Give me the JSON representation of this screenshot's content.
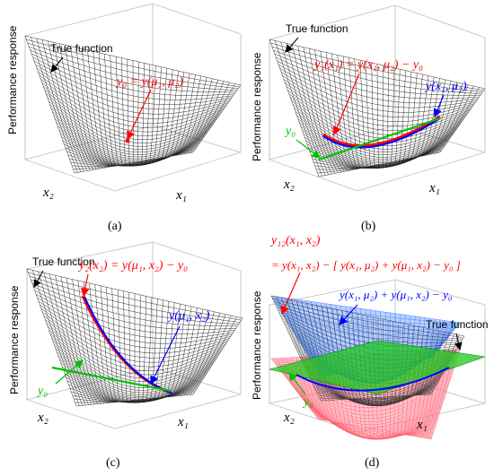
{
  "panels": [
    {
      "caption": "(a)",
      "ylabel": "Performance response",
      "xlabel1": "x₁",
      "xlabel2": "x₂",
      "true_function_label": "True function",
      "annotation": "y₀ = y(μ₁, μ₂)"
    },
    {
      "caption": "(b)",
      "ylabel": "Performance response",
      "xlabel1": "x₁",
      "xlabel2": "x₂",
      "true_function_label": "True function",
      "annotation_red": "y₁(x₁) = y(x₁, μ₂) − y₀",
      "annotation_blue": "y(x₁, μ₂)",
      "annotation_green": "y₀"
    },
    {
      "caption": "(c)",
      "ylabel": "Performance response",
      "xlabel1": "x₁",
      "xlabel2": "x₂",
      "true_function_label": "True function",
      "annotation_red": "y₂(x₂) = y(μ₁, x₂) − y₀",
      "annotation_blue": "y(μ₁, x₂)",
      "annotation_green": "y₀"
    },
    {
      "caption": "(d)",
      "ylabel": "Performance response",
      "xlabel1": "x₁",
      "xlabel2": "x₂",
      "true_function_label": "True function",
      "annotation_red_line1": "y₁₂(x₁, x₂)",
      "annotation_red_line2": "= y(x₁, x₂) − [ y(x₁, μ₂) + y(μ₁, x₂) − y₀ ]",
      "annotation_blue": "y(x₁, μ₂) + y(μ₁, x₂) − y₀",
      "annotation_green": "y₀"
    }
  ],
  "colors": {
    "mesh": "#1a1a1a",
    "red": "#ff0000",
    "blue": "#0000ff",
    "green": "#00c000",
    "pink_surface": "#ff6070",
    "blue_surface": "#4f8fff",
    "green_surface": "#20d020"
  }
}
